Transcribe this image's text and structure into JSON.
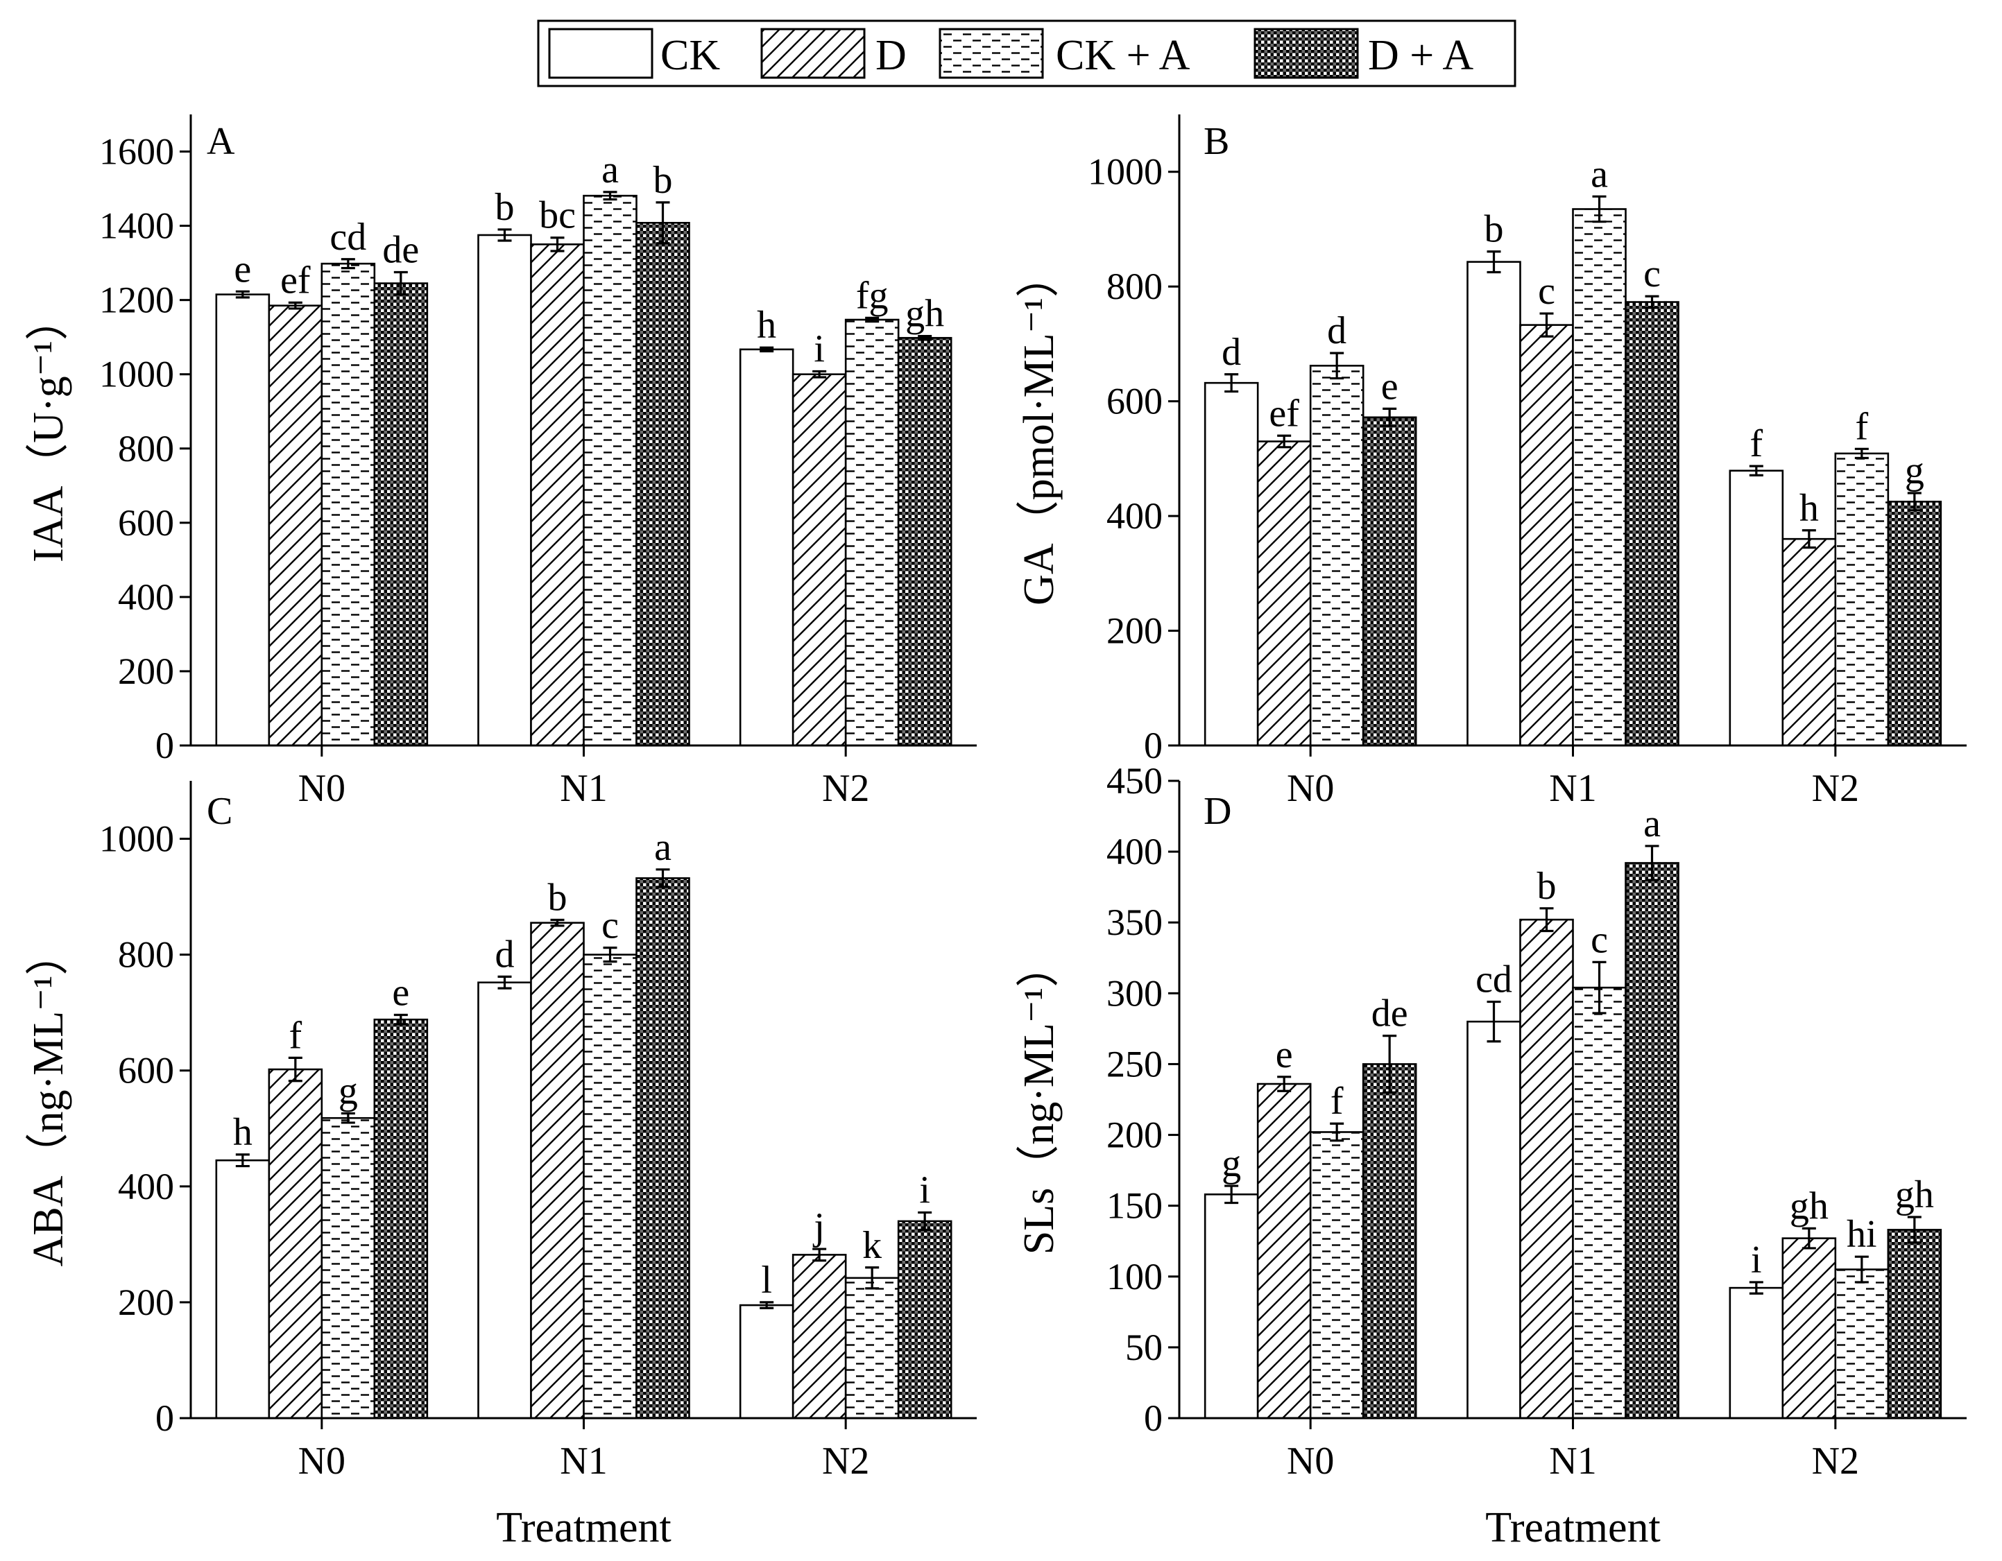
{
  "legend": {
    "entries": [
      {
        "name": "CK",
        "pattern": "plain"
      },
      {
        "name": "D",
        "pattern": "hatch"
      },
      {
        "name": "CK + A",
        "pattern": "dash"
      },
      {
        "name": "D + A",
        "pattern": "dots"
      }
    ]
  },
  "chart_data": [
    {
      "type": "bar",
      "panel_label": "A",
      "categories": [
        "N0",
        "N1",
        "N2"
      ],
      "ylabel": "IAA（U·g⁻¹）",
      "ylim": [
        0,
        1700
      ],
      "yticks": [
        0,
        200,
        400,
        600,
        800,
        1000,
        1200,
        1400,
        1600
      ],
      "xlabel": "",
      "series": [
        {
          "name": "CK",
          "values": [
            1215,
            1375,
            1067
          ],
          "errors": [
            8,
            15,
            5
          ],
          "letters": [
            "e",
            "b",
            "h"
          ]
        },
        {
          "name": "D",
          "values": [
            1185,
            1350,
            1000
          ],
          "errors": [
            8,
            18,
            8
          ],
          "letters": [
            "ef",
            "bc",
            "i"
          ]
        },
        {
          "name": "CK + A",
          "values": [
            1298,
            1481,
            1147
          ],
          "errors": [
            12,
            10,
            5
          ],
          "letters": [
            "cd",
            "a",
            "fg"
          ]
        },
        {
          "name": "D + A",
          "values": [
            1245,
            1408,
            1098
          ],
          "errors": [
            30,
            55,
            5
          ],
          "letters": [
            "de",
            "b",
            "gh"
          ]
        }
      ]
    },
    {
      "type": "bar",
      "panel_label": "B",
      "categories": [
        "N0",
        "N1",
        "N2"
      ],
      "ylabel": "GA（pmol·ML⁻¹）",
      "ylim": [
        0,
        1100
      ],
      "yticks": [
        0,
        200,
        400,
        600,
        800,
        1000
      ],
      "xlabel": "",
      "series": [
        {
          "name": "CK",
          "values": [
            632,
            843,
            479
          ],
          "errors": [
            15,
            18,
            8
          ],
          "letters": [
            "d",
            "b",
            "f"
          ]
        },
        {
          "name": "D",
          "values": [
            530,
            733,
            360
          ],
          "errors": [
            10,
            20,
            15
          ],
          "letters": [
            "ef",
            "c",
            "h"
          ]
        },
        {
          "name": "CK + A",
          "values": [
            662,
            935,
            509
          ],
          "errors": [
            22,
            22,
            8
          ],
          "letters": [
            "d",
            "a",
            "f"
          ]
        },
        {
          "name": "D + A",
          "values": [
            572,
            773,
            425
          ],
          "errors": [
            15,
            10,
            15
          ],
          "letters": [
            "e",
            "c",
            "g"
          ]
        }
      ]
    },
    {
      "type": "bar",
      "panel_label": "C",
      "categories": [
        "N0",
        "N1",
        "N2"
      ],
      "ylabel": "ABA（ng·ML⁻¹）",
      "ylim": [
        0,
        1100
      ],
      "yticks": [
        0,
        200,
        400,
        600,
        800,
        1000
      ],
      "xlabel": "Treatment",
      "series": [
        {
          "name": "CK",
          "values": [
            445,
            752,
            195
          ],
          "errors": [
            10,
            10,
            5
          ],
          "letters": [
            "h",
            "d",
            "l"
          ]
        },
        {
          "name": "D",
          "values": [
            602,
            855,
            282
          ],
          "errors": [
            20,
            5,
            10
          ],
          "letters": [
            "f",
            "b",
            "j"
          ]
        },
        {
          "name": "CK + A",
          "values": [
            518,
            800,
            242
          ],
          "errors": [
            8,
            12,
            18
          ],
          "letters": [
            "g",
            "c",
            "k"
          ]
        },
        {
          "name": "D + A",
          "values": [
            688,
            932,
            340
          ],
          "errors": [
            8,
            15,
            15
          ],
          "letters": [
            "e",
            "a",
            "i"
          ]
        }
      ]
    },
    {
      "type": "bar",
      "panel_label": "D",
      "categories": [
        "N0",
        "N1",
        "N2"
      ],
      "ylabel": "SLs（ng·ML⁻¹）",
      "ylim": [
        0,
        450
      ],
      "yticks": [
        0,
        50,
        100,
        150,
        200,
        250,
        300,
        350,
        400,
        450
      ],
      "xlabel": "Treatment",
      "series": [
        {
          "name": "CK",
          "values": [
            158,
            280,
            92
          ],
          "errors": [
            6,
            14,
            4
          ],
          "letters": [
            "g",
            "cd",
            "i"
          ]
        },
        {
          "name": "D",
          "values": [
            236,
            352,
            127
          ],
          "errors": [
            5,
            8,
            7
          ],
          "letters": [
            "e",
            "b",
            "gh"
          ]
        },
        {
          "name": "CK + A",
          "values": [
            202,
            304,
            105
          ],
          "errors": [
            6,
            18,
            9
          ],
          "letters": [
            "f",
            "c",
            "hi"
          ]
        },
        {
          "name": "D + A",
          "values": [
            250,
            392,
            133
          ],
          "errors": [
            20,
            12,
            9
          ],
          "letters": [
            "de",
            "a",
            "gh"
          ]
        }
      ]
    }
  ]
}
